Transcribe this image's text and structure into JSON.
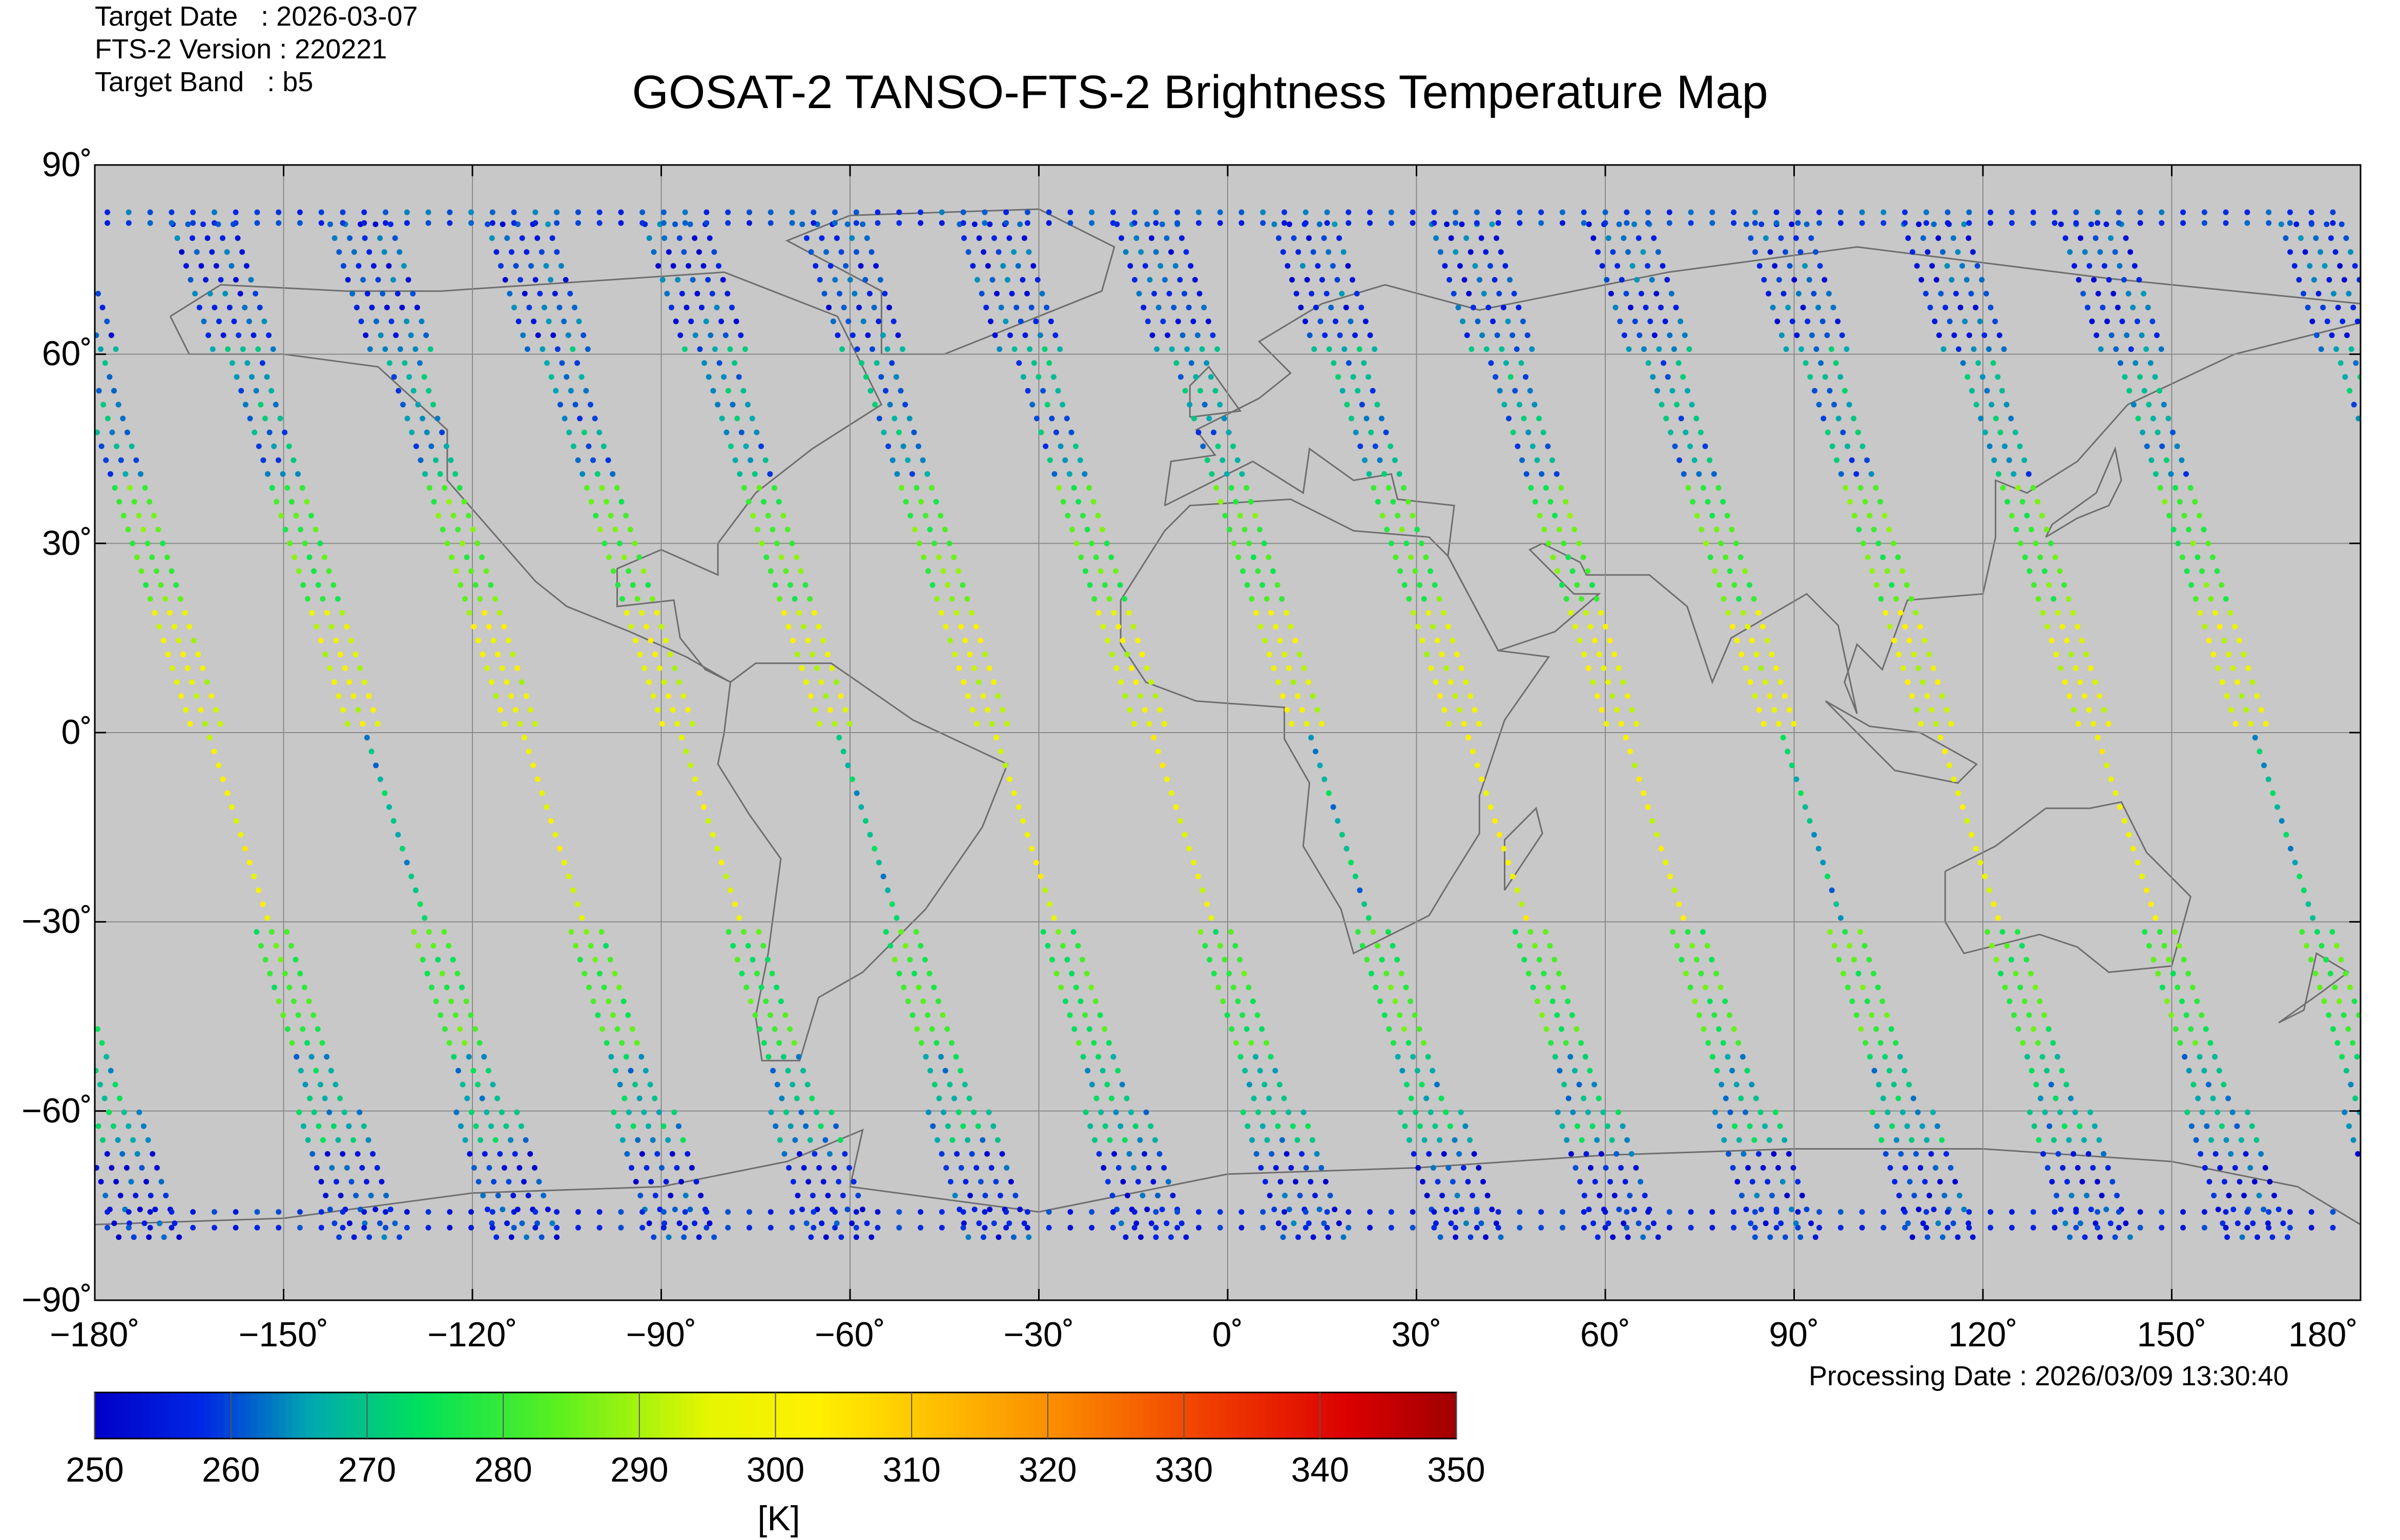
{
  "header": {
    "target_date": "Target Date   : 2026-03-07",
    "fts_version": "FTS-2 Version : 220221",
    "target_band": "Target Band   : b5"
  },
  "footer": {
    "processing_date": "Processing Date : 2026/03/09 13:30:40"
  },
  "chart_data": {
    "type": "scatter",
    "title": "GOSAT-2 TANSO-FTS-2 Brightness Temperature Map",
    "xlim": [
      -180,
      180
    ],
    "ylim": [
      -90,
      90
    ],
    "xticks": [
      -180,
      -150,
      -120,
      -90,
      -60,
      -30,
      0,
      30,
      60,
      90,
      120,
      150,
      180
    ],
    "yticks": [
      90,
      60,
      30,
      0,
      -30,
      -60,
      -90
    ],
    "xtick_labels": [
      "−180˚",
      "−150˚",
      "−120˚",
      "−90˚",
      "−60˚",
      "−30˚",
      "0˚",
      "30˚",
      "60˚",
      "90˚",
      "120˚",
      "150˚",
      "180˚"
    ],
    "ytick_labels": [
      "90˚",
      "60˚",
      "30˚",
      "0˚",
      "−30˚",
      "−60˚",
      "−90˚"
    ],
    "grid": true,
    "background": "#c8c8c8",
    "colorbar": {
      "min": 250,
      "max": 350,
      "ticks": [
        "250",
        "260",
        "270",
        "280",
        "290",
        "300",
        "310",
        "320",
        "330",
        "340",
        "350"
      ],
      "unit": "[K]",
      "colors": [
        "#0000c8",
        "#0030e0",
        "#00a0b4",
        "#00e060",
        "#60f020",
        "#f0f000",
        "#f0c000",
        "#f08000",
        "#f04000",
        "#e00000",
        "#a00000"
      ]
    },
    "orbit_equator_lons": [
      -162,
      -137,
      -112,
      -87,
      -62,
      -37,
      -12,
      13,
      38,
      63,
      88,
      113,
      138,
      163
    ],
    "orbit_temperatures": [
      {
        "lat_range": [
          62,
          82
        ],
        "value": 258
      },
      {
        "lat_range": [
          40,
          62
        ],
        "value": 265
      },
      {
        "lat_range": [
          20,
          40
        ],
        "value": 282
      },
      {
        "lat_range": [
          0,
          20
        ],
        "value": 296
      },
      {
        "lat_range": [
          -30,
          0
        ],
        "value": 298
      },
      {
        "lat_range": [
          -50,
          -30
        ],
        "value": 280
      },
      {
        "lat_range": [
          -65,
          -50
        ],
        "value": 268
      },
      {
        "lat_range": [
          -80,
          -65
        ],
        "value": 257
      }
    ]
  }
}
